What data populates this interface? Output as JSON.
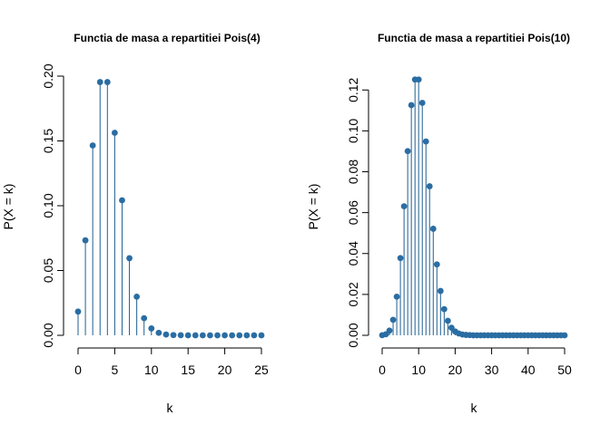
{
  "colors": {
    "stem": "#1f5f91",
    "point": "#2a6da3"
  },
  "chart_data": [
    {
      "type": "scatter",
      "title": "Functia de masa a repartitiei Pois(4)",
      "xlabel": "k",
      "ylabel": "P(X = k)",
      "xlim": [
        0,
        25
      ],
      "ylim": [
        0,
        0.2
      ],
      "xticks": [
        0,
        5,
        10,
        15,
        20,
        25
      ],
      "yticks": [
        0.0,
        0.05,
        0.1,
        0.15,
        0.2
      ],
      "xtick_labels": [
        "0",
        "5",
        "10",
        "15",
        "20",
        "25"
      ],
      "ytick_labels": [
        "0.00",
        "0.05",
        "0.10",
        "0.15",
        "0.20"
      ],
      "grid": false,
      "x": [
        0,
        1,
        2,
        3,
        4,
        5,
        6,
        7,
        8,
        9,
        10,
        11,
        12,
        13,
        14,
        15,
        16,
        17,
        18,
        19,
        20,
        21,
        22,
        23,
        24,
        25
      ],
      "y": [
        0.0183,
        0.0733,
        0.1465,
        0.1954,
        0.1954,
        0.1563,
        0.1042,
        0.0595,
        0.0298,
        0.0132,
        0.0053,
        0.0019,
        0.0006,
        0.0002,
        0.0001,
        0,
        0,
        0,
        0,
        0,
        0,
        0,
        0,
        0,
        0,
        0
      ]
    },
    {
      "type": "scatter",
      "title": "Functia de masa a repartitiei Pois(10)",
      "xlabel": "k",
      "ylabel": "P(X = k)",
      "xlim": [
        0,
        50
      ],
      "ylim": [
        0,
        0.125
      ],
      "xticks": [
        0,
        10,
        20,
        30,
        40,
        50
      ],
      "yticks": [
        0.0,
        0.02,
        0.04,
        0.06,
        0.08,
        0.1,
        0.12
      ],
      "xtick_labels": [
        "0",
        "10",
        "20",
        "30",
        "40",
        "50"
      ],
      "ytick_labels": [
        "0.00",
        "0.02",
        "0.04",
        "0.06",
        "0.08",
        "0.10",
        "0.12"
      ],
      "grid": false,
      "x": [
        0,
        1,
        2,
        3,
        4,
        5,
        6,
        7,
        8,
        9,
        10,
        11,
        12,
        13,
        14,
        15,
        16,
        17,
        18,
        19,
        20,
        21,
        22,
        23,
        24,
        25,
        26,
        27,
        28,
        29,
        30,
        31,
        32,
        33,
        34,
        35,
        36,
        37,
        38,
        39,
        40,
        41,
        42,
        43,
        44,
        45,
        46,
        47,
        48,
        49,
        50
      ],
      "y": [
        5e-05,
        0.0005,
        0.0023,
        0.0076,
        0.0189,
        0.0378,
        0.0631,
        0.0901,
        0.1126,
        0.1251,
        0.1251,
        0.1137,
        0.0948,
        0.0729,
        0.0521,
        0.0347,
        0.0217,
        0.0128,
        0.0071,
        0.0037,
        0.0019,
        0.0009,
        0.0004,
        0.0002,
        0.0001,
        0,
        0,
        0,
        0,
        0,
        0,
        0,
        0,
        0,
        0,
        0,
        0,
        0,
        0,
        0,
        0,
        0,
        0,
        0,
        0,
        0,
        0,
        0,
        0,
        0,
        0
      ]
    }
  ]
}
